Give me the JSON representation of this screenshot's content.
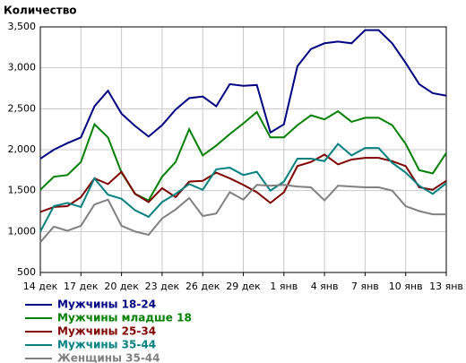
{
  "chart_data": {
    "type": "line",
    "title": "Количество",
    "categories": [
      "14 дек",
      null,
      null,
      "17 дек",
      null,
      null,
      "20 дек",
      null,
      null,
      "23 дек",
      null,
      null,
      "26 дек",
      null,
      null,
      "29 дек",
      null,
      null,
      "1 янв",
      null,
      null,
      "4 янв",
      null,
      null,
      "7 янв",
      null,
      null,
      "10 янв",
      null,
      null,
      "13 янв"
    ],
    "series": [
      {
        "name": "Мужчины 18-24",
        "color": "#000080",
        "values": [
          1890,
          2000,
          2080,
          2150,
          2530,
          2720,
          2440,
          2290,
          2160,
          2300,
          2490,
          2630,
          2650,
          2530,
          2800,
          2780,
          2790,
          2210,
          2310,
          3020,
          3230,
          3300,
          3320,
          3300,
          3460,
          3460,
          3300,
          3060,
          2800,
          2690,
          2660
        ]
      },
      {
        "name": "Мужчины младше 18",
        "color": "#008000",
        "values": [
          1510,
          1670,
          1690,
          1850,
          2310,
          2150,
          1720,
          1460,
          1380,
          1670,
          1850,
          2250,
          1930,
          2050,
          2190,
          2320,
          2460,
          2150,
          2150,
          2300,
          2420,
          2370,
          2470,
          2340,
          2390,
          2390,
          2300,
          2070,
          1750,
          1710,
          1960
        ]
      },
      {
        "name": "Мужчины 25-34",
        "color": "#800000",
        "values": [
          1240,
          1300,
          1310,
          1420,
          1650,
          1580,
          1730,
          1460,
          1360,
          1530,
          1420,
          1610,
          1620,
          1720,
          1650,
          1570,
          1480,
          1350,
          1480,
          1800,
          1850,
          1940,
          1820,
          1880,
          1900,
          1900,
          1860,
          1800,
          1540,
          1510,
          1620
        ]
      },
      {
        "name": "Мужчины 35-44",
        "color": "#008080",
        "values": [
          1000,
          1310,
          1350,
          1300,
          1650,
          1450,
          1400,
          1260,
          1180,
          1360,
          1460,
          1580,
          1510,
          1760,
          1780,
          1690,
          1730,
          1500,
          1610,
          1890,
          1890,
          1860,
          2070,
          1930,
          2020,
          2020,
          1840,
          1720,
          1560,
          1460,
          1590
        ]
      },
      {
        "name": "Женщины 35-44",
        "color": "#808080",
        "values": [
          870,
          1060,
          1010,
          1070,
          1330,
          1390,
          1070,
          1000,
          960,
          1160,
          1270,
          1410,
          1190,
          1220,
          1480,
          1390,
          1570,
          1560,
          1570,
          1550,
          1540,
          1380,
          1560,
          1550,
          1540,
          1540,
          1500,
          1310,
          1250,
          1210,
          1210
        ]
      }
    ],
    "ylim": [
      500,
      3500
    ],
    "yticks": [
      500,
      {
        "value": 1000,
        "label": "1,000"
      },
      {
        "value": 1500,
        "label": "1,500"
      },
      {
        "value": 2000,
        "label": "2,000"
      },
      {
        "value": 2500,
        "label": "2,500"
      },
      {
        "value": 3000,
        "label": "3,000"
      },
      {
        "value": 3500,
        "label": "3,500"
      }
    ],
    "grid": true
  }
}
